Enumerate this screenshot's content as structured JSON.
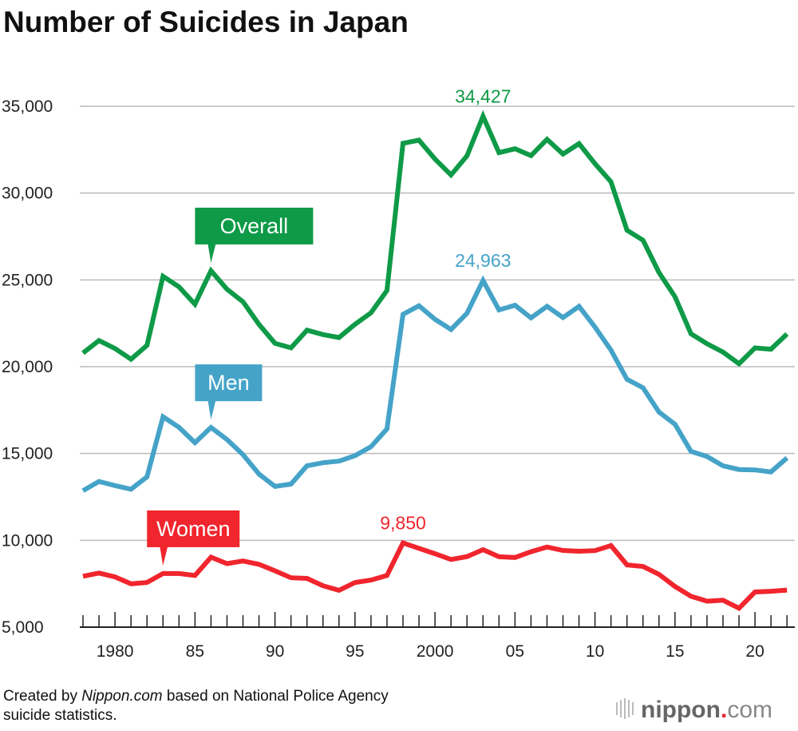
{
  "chart_data": {
    "type": "line",
    "title": "Number of Suicides in Japan",
    "xlabel": "",
    "ylabel": "",
    "ylim": [
      5000,
      35000
    ],
    "xlim": [
      1978,
      2022
    ],
    "grid": true,
    "yticks": [
      5000,
      10000,
      15000,
      20000,
      25000,
      30000,
      35000
    ],
    "ytick_labels": [
      "5,000",
      "10,000",
      "15,000",
      "20,000",
      "25,000",
      "30,000",
      "35,000"
    ],
    "xticks": [
      1980,
      1985,
      1990,
      1995,
      2000,
      2005,
      2010,
      2015,
      2020
    ],
    "xtick_labels": [
      "1980",
      "85",
      "90",
      "95",
      "2000",
      "05",
      "10",
      "15",
      "20"
    ],
    "x": [
      1978,
      1979,
      1980,
      1981,
      1982,
      1983,
      1984,
      1985,
      1986,
      1987,
      1988,
      1989,
      1990,
      1991,
      1992,
      1993,
      1994,
      1995,
      1996,
      1997,
      1998,
      1999,
      2000,
      2001,
      2002,
      2003,
      2004,
      2005,
      2006,
      2007,
      2008,
      2009,
      2010,
      2011,
      2012,
      2013,
      2014,
      2015,
      2016,
      2017,
      2018,
      2019,
      2020,
      2021,
      2022
    ],
    "series": [
      {
        "name": "Overall",
        "color": "#0e9a47",
        "peak_label": "34,427",
        "peak_year": 2003,
        "label_year": 1986,
        "values": [
          20788,
          21503,
          21048,
          20434,
          21228,
          25202,
          24596,
          23599,
          25524,
          24460,
          23742,
          22436,
          21346,
          21084,
          22104,
          21851,
          21679,
          22445,
          23104,
          24391,
          32863,
          33048,
          31957,
          31042,
          32143,
          34427,
          32325,
          32552,
          32155,
          33093,
          32249,
          32845,
          31690,
          30651,
          27858,
          27283,
          25427,
          24025,
          21897,
          21321,
          20840,
          20169,
          21081,
          21007,
          21881
        ]
      },
      {
        "name": "Men",
        "color": "#45a3c8",
        "peak_label": "24,963",
        "peak_year": 2003,
        "label_year": 1986,
        "values": [
          12859,
          13386,
          13155,
          12942,
          13654,
          17116,
          16508,
          15624,
          16497,
          15802,
          14934,
          13818,
          13102,
          13242,
          14296,
          14468,
          14560,
          14874,
          15393,
          16416,
          23013,
          23512,
          22727,
          22144,
          23080,
          24963,
          23272,
          23540,
          22813,
          23478,
          22831,
          23472,
          22283,
          20955,
          19273,
          18787,
          17386,
          16681,
          15121,
          14826,
          14290,
          14078,
          14055,
          13939,
          14746
        ]
      },
      {
        "name": "Women",
        "color": "#f0252d",
        "peak_label": "9,850",
        "peak_year": 1998,
        "label_year": 1983,
        "values": [
          7929,
          8117,
          7893,
          7492,
          7574,
          8086,
          8088,
          7975,
          9027,
          8658,
          8808,
          8618,
          8244,
          7842,
          7808,
          7383,
          7119,
          7571,
          7711,
          7975,
          9850,
          9536,
          9230,
          8898,
          9063,
          9464,
          9053,
          9012,
          9342,
          9615,
          9418,
          9373,
          9407,
          9696,
          8585,
          8496,
          8041,
          7344,
          6776,
          6495,
          6550,
          6091,
          7026,
          7068,
          7135
        ]
      }
    ]
  },
  "footer": {
    "prefix": "Created by ",
    "source_italic": "Nippon.com",
    "suffix": " based on National Police Agency",
    "line2": "suicide statistics."
  },
  "logo": {
    "text": "nippon",
    "dot": ".",
    "tld": "com"
  }
}
